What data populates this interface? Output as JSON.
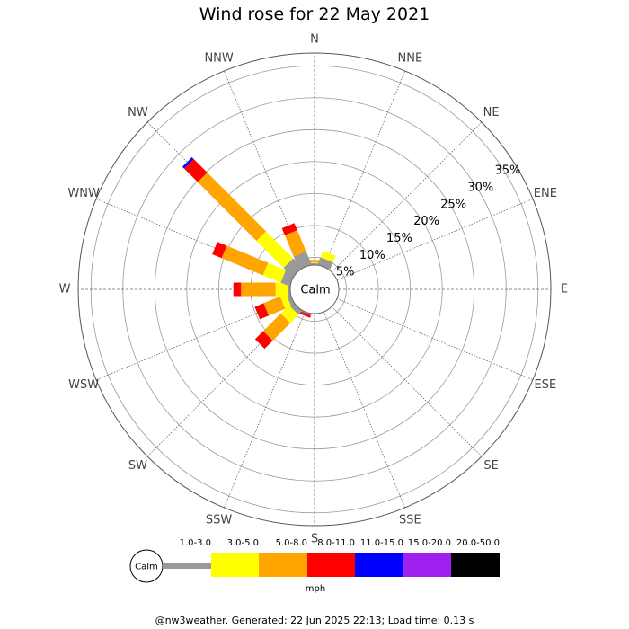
{
  "page": {
    "title": "Wind rose for 22 May 2021",
    "footer": "@nw3weather. Generated: 22 Jun 2025 22:13; Load time: 0.13 s"
  },
  "chart_data": {
    "type": "polar-stacked-bar",
    "title": "Wind rose for 22 May 2021",
    "calm_label": "Calm",
    "unit_label": "mph",
    "directions": [
      "N",
      "NNE",
      "NE",
      "ENE",
      "E",
      "ESE",
      "SE",
      "SSE",
      "S",
      "SSW",
      "SW",
      "WSW",
      "W",
      "WNW",
      "NW",
      "NNW"
    ],
    "radial_ticks": [
      "5%",
      "10%",
      "15%",
      "20%",
      "25%",
      "30%",
      "35%"
    ],
    "radial_tick_values": [
      5,
      10,
      15,
      20,
      25,
      30,
      35
    ],
    "rmax": 37,
    "calm_radius": 3.8,
    "speed_bins": [
      {
        "label": "1.0-3.0",
        "color": "#999999"
      },
      {
        "label": "3.0-5.0",
        "color": "#ffff00"
      },
      {
        "label": "5.0-8.0",
        "color": "#ffa500"
      },
      {
        "label": "8.0-11.0",
        "color": "#ff0000"
      },
      {
        "label": "11.0-15.0",
        "color": "#0000ff"
      },
      {
        "label": "15.0-20.0",
        "color": "#a020f0"
      },
      {
        "label": "20.0-50.0",
        "color": "#000000"
      }
    ],
    "series": [
      {
        "direction": "N",
        "values": [
          0.3,
          0.1,
          0.4,
          0.0,
          0,
          0,
          0
        ]
      },
      {
        "direction": "NNE",
        "values": [
          1.2,
          1.1,
          0.0,
          0.0,
          0,
          0,
          0
        ]
      },
      {
        "direction": "NE",
        "values": [
          0,
          0,
          0,
          0,
          0,
          0,
          0
        ]
      },
      {
        "direction": "ENE",
        "values": [
          0,
          0,
          0,
          0,
          0,
          0,
          0
        ]
      },
      {
        "direction": "E",
        "values": [
          0,
          0,
          0,
          0,
          0,
          0,
          0
        ]
      },
      {
        "direction": "ESE",
        "values": [
          0,
          0,
          0,
          0,
          0,
          0,
          0
        ]
      },
      {
        "direction": "SE",
        "values": [
          0,
          0,
          0,
          0,
          0,
          0,
          0
        ]
      },
      {
        "direction": "SSE",
        "values": [
          0,
          0,
          0,
          0,
          0,
          0,
          0
        ]
      },
      {
        "direction": "S",
        "values": [
          0,
          0,
          0,
          0,
          0,
          0,
          0
        ]
      },
      {
        "direction": "SSW",
        "values": [
          0.2,
          0.0,
          0.0,
          0.4,
          0,
          0,
          0
        ]
      },
      {
        "direction": "SW",
        "values": [
          0.8,
          1.8,
          3.9,
          1.8,
          0,
          0,
          0
        ]
      },
      {
        "direction": "WSW",
        "values": [
          0.6,
          1.0,
          2.8,
          1.5,
          0,
          0,
          0
        ]
      },
      {
        "direction": "W",
        "values": [
          0.3,
          2.0,
          5.4,
          1.2,
          0,
          0,
          0
        ]
      },
      {
        "direction": "WNW",
        "values": [
          1.5,
          3.0,
          7.0,
          1.6,
          0,
          0,
          0
        ]
      },
      {
        "direction": "NW",
        "values": [
          2.0,
          6.0,
          13.0,
          3.0,
          0.4,
          0,
          0
        ]
      },
      {
        "direction": "NNW",
        "values": [
          2.2,
          0.0,
          3.6,
          1.2,
          0,
          0,
          0
        ]
      }
    ]
  }
}
